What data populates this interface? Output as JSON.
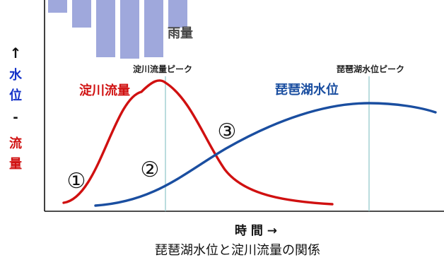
{
  "rain_label": "雨量",
  "rain_bars": [
    0.22,
    0.47,
    0.98,
    1.0,
    0.98,
    0.47
  ],
  "y_axis": {
    "arrow": "↑",
    "part1": "水",
    "part2": "位",
    "separator": "-",
    "part3": "流",
    "part4": "量"
  },
  "x_axis_label": "時 間 →",
  "caption": "琵琶湖水位と淀川流量の関係",
  "annotations": {
    "yodo_peak": "淀川流量ピーク",
    "biwa_peak": "琵琶湖水位ピーク"
  },
  "series": [
    {
      "name": "淀川流量",
      "color": "#d01010"
    },
    {
      "name": "琵琶湖水位",
      "color": "#1a4ea0"
    }
  ],
  "phase_markers": [
    "①",
    "②",
    "③"
  ],
  "colors": {
    "rain": "#9fa8dc",
    "axis": "#111111",
    "guide": "#8cc4c8",
    "plot_bg": "#ffffff",
    "water": "#1432c8",
    "flow": "#d01010"
  }
}
